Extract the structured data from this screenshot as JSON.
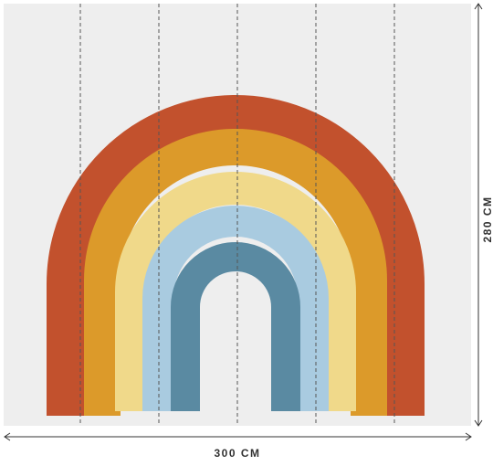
{
  "dimensions": {
    "width_label": "300 CM",
    "height_label": "280 CM"
  }
}
